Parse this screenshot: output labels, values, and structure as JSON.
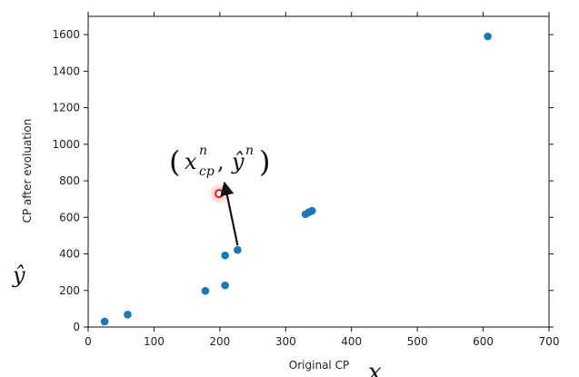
{
  "chart_data": {
    "type": "scatter",
    "xlabel": "Original CP",
    "ylabel": "CP after evoluation",
    "xlim": [
      0,
      700
    ],
    "ylim": [
      0,
      1700
    ],
    "xticks": [
      0,
      100,
      200,
      300,
      400,
      500,
      600,
      700
    ],
    "yticks": [
      0,
      200,
      400,
      600,
      800,
      1000,
      1200,
      1400,
      1600
    ],
    "grid": false,
    "series": [
      {
        "color": "#1f77b4",
        "points": [
          {
            "x": 25,
            "y": 30
          },
          {
            "x": 60,
            "y": 68
          },
          {
            "x": 178,
            "y": 198
          },
          {
            "x": 208,
            "y": 228
          },
          {
            "x": 208,
            "y": 392
          },
          {
            "x": 227,
            "y": 422
          },
          {
            "x": 330,
            "y": 617
          },
          {
            "x": 335,
            "y": 628
          },
          {
            "x": 340,
            "y": 636
          },
          {
            "x": 607,
            "y": 1590
          }
        ]
      }
    ],
    "highlight": {
      "x": 199,
      "y": 730,
      "color": "#e01a1a"
    },
    "annotation": {
      "text": "(x_cp^n, ŷ^n)",
      "arrow_from": {
        "x": 227,
        "y": 422
      },
      "arrow_to": {
        "x": 207,
        "y": 790
      }
    },
    "math_labels": {
      "y_symbol": "ŷ",
      "x_symbol": "x",
      "x_symbol_sub": "cp",
      "annot_x": "x",
      "annot_sub": "cp",
      "annot_sup": "n",
      "annot_y": "ŷ",
      "annot_ysup": "n",
      "paren_open": "(",
      "paren_close": ")",
      "comma": ","
    }
  }
}
